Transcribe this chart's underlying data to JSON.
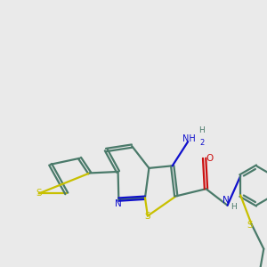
{
  "bg_color": "#eaeaea",
  "bond_color": "#4a7a6a",
  "n_color": "#1010cc",
  "s_color": "#c8c000",
  "o_color": "#cc1010",
  "lw": 1.6,
  "fs": 7.5,
  "xlim": [
    0,
    10
  ],
  "ylim": [
    0,
    10
  ]
}
